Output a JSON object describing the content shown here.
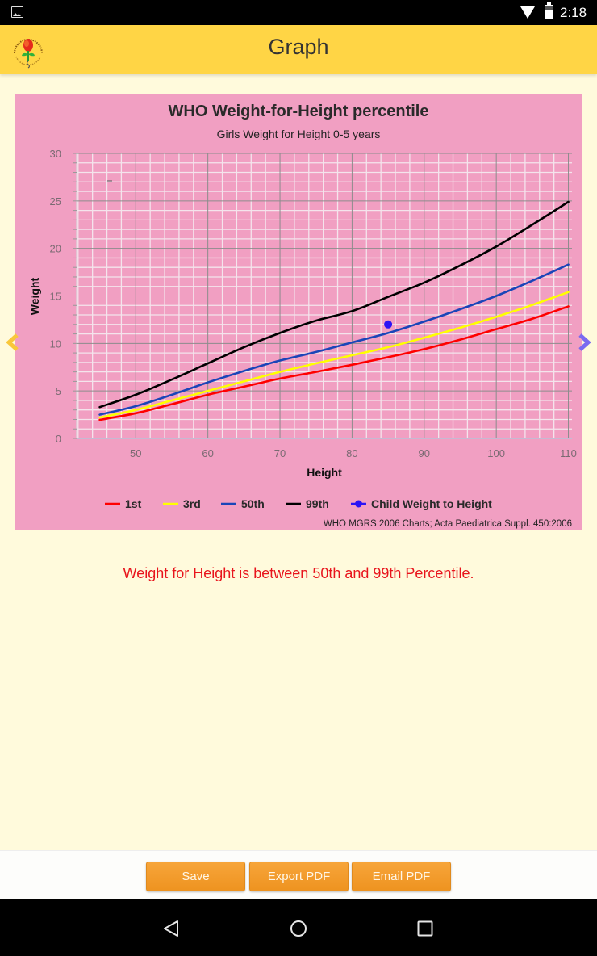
{
  "status_bar": {
    "time": "2:18",
    "icons": [
      "image-notification-icon",
      "wifi-icon",
      "battery-icon"
    ]
  },
  "app_bar": {
    "title": "Graph",
    "logo": "indian-academy-of-pediatrics-logo"
  },
  "chart": {
    "title": "WHO Weight-for-Height percentile",
    "subtitle": "Girls Weight for Height 0-5 years",
    "source": "WHO MGRS 2006 Charts; Acta Paediatrica Suppl. 450:2006",
    "background": "#f19fc2",
    "legend": [
      {
        "label": "1st",
        "color": "#ff0000",
        "type": "line"
      },
      {
        "label": "3rd",
        "color": "#ffff00",
        "type": "line"
      },
      {
        "label": "50th",
        "color": "#1a45b8",
        "type": "line"
      },
      {
        "label": "99th",
        "color": "#000000",
        "type": "line"
      },
      {
        "label": "Child Weight to Height",
        "color": "#2b14f5",
        "type": "point"
      }
    ]
  },
  "chart_data": {
    "type": "line",
    "title": "WHO Weight-for-Height percentile",
    "subtitle": "Girls Weight for Height 0-5 years",
    "xlabel": "Height",
    "ylabel": "Weight",
    "xlim": [
      41.8,
      110.5
    ],
    "ylim": [
      0,
      30
    ],
    "xticks": [
      50,
      60,
      70,
      80,
      90,
      100,
      110
    ],
    "yticks": [
      0,
      5,
      10,
      15,
      20,
      25,
      30
    ],
    "grid": true,
    "legend_position": "bottom",
    "x": [
      45,
      50,
      55,
      60,
      65,
      70,
      75,
      80,
      85,
      90,
      95,
      100,
      105,
      110
    ],
    "series": [
      {
        "name": "1st",
        "color": "#ff0000",
        "values": [
          1.95,
          2.65,
          3.6,
          4.6,
          5.45,
          6.3,
          7.0,
          7.75,
          8.55,
          9.4,
          10.4,
          11.5,
          12.6,
          13.9
        ]
      },
      {
        "name": "3rd",
        "color": "#ffff00",
        "values": [
          2.2,
          3.0,
          4.0,
          5.0,
          6.0,
          7.0,
          7.9,
          8.75,
          9.6,
          10.6,
          11.65,
          12.8,
          14.05,
          15.4
        ]
      },
      {
        "name": "50th",
        "color": "#1a45b8",
        "values": [
          2.5,
          3.4,
          4.6,
          5.9,
          7.1,
          8.2,
          9.1,
          10.1,
          11.1,
          12.3,
          13.6,
          15.0,
          16.6,
          18.3
        ]
      },
      {
        "name": "99th",
        "color": "#000000",
        "values": [
          3.3,
          4.6,
          6.2,
          7.9,
          9.6,
          11.1,
          12.4,
          13.4,
          14.9,
          16.4,
          18.2,
          20.2,
          22.5,
          24.9
        ]
      }
    ],
    "points": [
      {
        "name": "Child Weight to Height",
        "color": "#2b14f5",
        "x": 85,
        "y": 12.0
      }
    ],
    "source": "WHO MGRS 2006 Charts; Acta Paediatrica Suppl. 450:2006"
  },
  "result": {
    "message": "Weight for Height is between 50th and 99th Percentile.",
    "color": "#e8141c"
  },
  "actions": {
    "save_label": "Save",
    "export_label": "Export PDF",
    "email_label": "Email PDF"
  },
  "navigation": {
    "prev_icon": "chevron-left-icon",
    "next_icon": "chevron-right-icon",
    "prev_color": "#f9c73a",
    "next_color": "#7a6bf0"
  },
  "system_nav": {
    "buttons": [
      "back",
      "home",
      "recents"
    ]
  }
}
